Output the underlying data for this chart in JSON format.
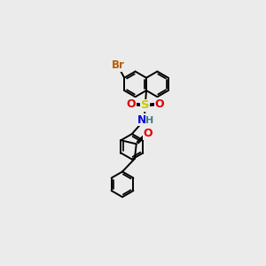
{
  "bg_color": "#ebebeb",
  "bond_color": "#000000",
  "bond_width": 1.4,
  "atom_colors": {
    "Br": "#b85c00",
    "S": "#c8c800",
    "O": "#e00000",
    "N": "#0000e0",
    "H": "#408080",
    "C": "#000000"
  }
}
